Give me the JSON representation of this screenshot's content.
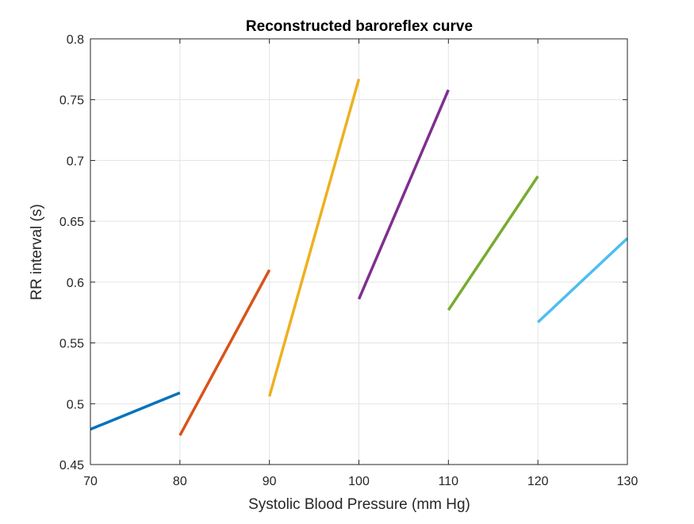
{
  "chart_data": {
    "type": "line",
    "title": "Reconstructed baroreflex curve",
    "xlabel": "Systolic Blood Pressure (mm Hg)",
    "ylabel": "RR interval (s)",
    "xlim": [
      70,
      130
    ],
    "ylim": [
      0.45,
      0.8
    ],
    "x_ticks": [
      70,
      80,
      90,
      100,
      110,
      120,
      130
    ],
    "y_ticks": [
      0.45,
      0.5,
      0.55,
      0.6,
      0.65,
      0.7,
      0.75,
      0.8
    ],
    "x_tick_labels": [
      "70",
      "80",
      "90",
      "100",
      "110",
      "120",
      "130"
    ],
    "y_tick_labels": [
      "0.45",
      "0.5",
      "0.55",
      "0.6",
      "0.65",
      "0.7",
      "0.75",
      "0.8"
    ],
    "grid": true,
    "series": [
      {
        "color": "#0072BD",
        "x": [
          70,
          80
        ],
        "y": [
          0.479,
          0.509
        ]
      },
      {
        "color": "#D95319",
        "x": [
          80,
          90
        ],
        "y": [
          0.474,
          0.61
        ]
      },
      {
        "color": "#EDB120",
        "x": [
          90,
          100
        ],
        "y": [
          0.506,
          0.767
        ]
      },
      {
        "color": "#7E2F8E",
        "x": [
          100,
          110
        ],
        "y": [
          0.586,
          0.758
        ]
      },
      {
        "color": "#77AC30",
        "x": [
          110,
          120
        ],
        "y": [
          0.577,
          0.687
        ]
      },
      {
        "color": "#4DBEEE",
        "x": [
          120,
          130
        ],
        "y": [
          0.567,
          0.636
        ]
      }
    ]
  }
}
